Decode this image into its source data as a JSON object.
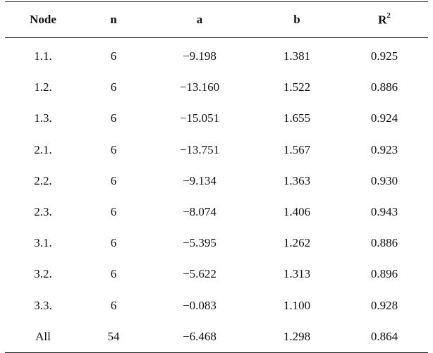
{
  "table": {
    "headers": {
      "node": "Node",
      "n": "n",
      "a": "a",
      "b": "b",
      "r2_base": "R",
      "r2_sup": "2"
    },
    "rows": [
      {
        "node": "1.1.",
        "n": "6",
        "a": "−9.198",
        "b": "1.381",
        "r2": "0.925"
      },
      {
        "node": "1.2.",
        "n": "6",
        "a": "−13.160",
        "b": "1.522",
        "r2": "0.886"
      },
      {
        "node": "1.3.",
        "n": "6",
        "a": "−15.051",
        "b": "1.655",
        "r2": "0.924"
      },
      {
        "node": "2.1.",
        "n": "6",
        "a": "−13.751",
        "b": "1.567",
        "r2": "0.923"
      },
      {
        "node": "2.2.",
        "n": "6",
        "a": "−9.134",
        "b": "1.363",
        "r2": "0.930"
      },
      {
        "node": "2.3.",
        "n": "6",
        "a": "−8.074",
        "b": "1.406",
        "r2": "0.943"
      },
      {
        "node": "3.1.",
        "n": "6",
        "a": "−5.395",
        "b": "1.262",
        "r2": "0.886"
      },
      {
        "node": "3.2.",
        "n": "6",
        "a": "−5.622",
        "b": "1.313",
        "r2": "0.896"
      },
      {
        "node": "3.3.",
        "n": "6",
        "a": "−0.083",
        "b": "1.100",
        "r2": "0.928"
      },
      {
        "node": "All",
        "n": "54",
        "a": "−6.468",
        "b": "1.298",
        "r2": "0.864"
      }
    ]
  }
}
